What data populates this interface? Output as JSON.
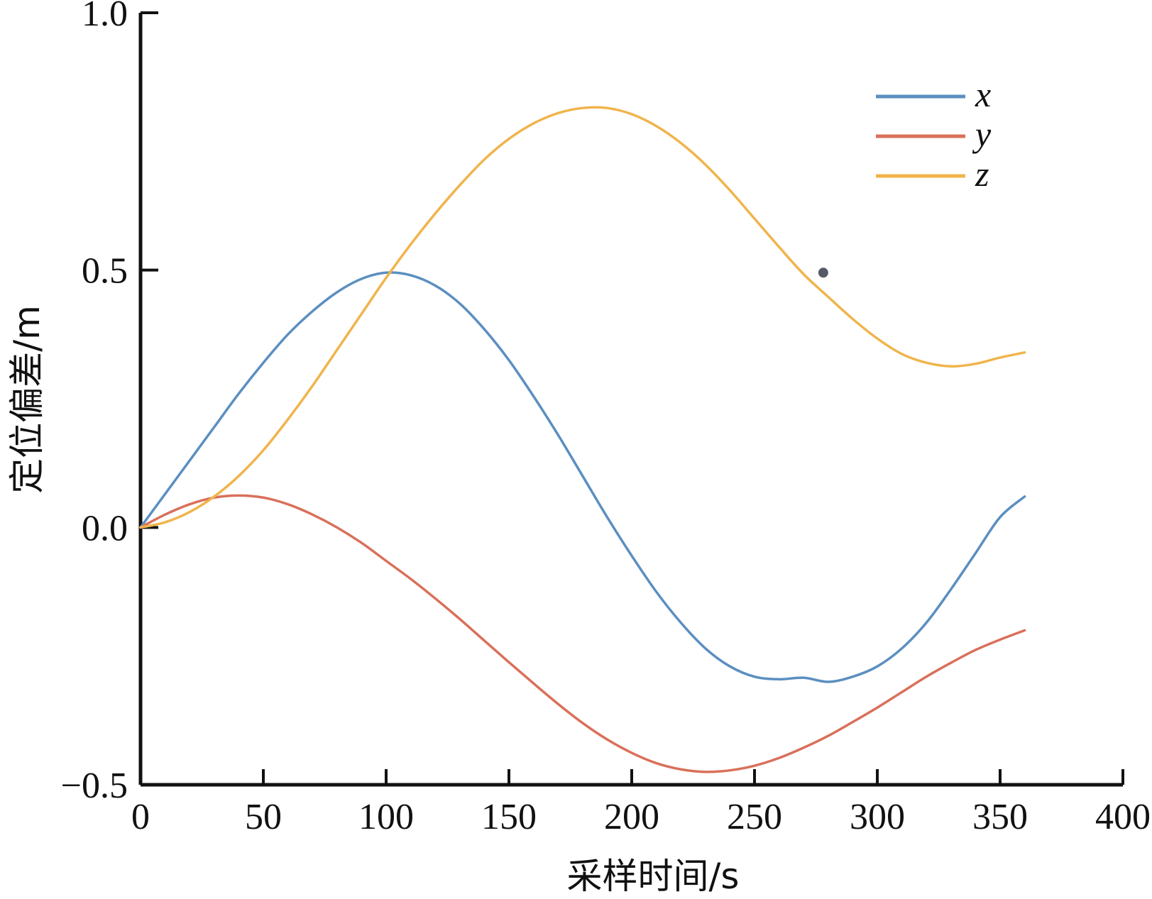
{
  "chart_data": {
    "type": "line",
    "title": "",
    "xlabel": "采样时间/s",
    "ylabel": "定位偏差/m",
    "xlim": [
      0,
      400
    ],
    "ylim": [
      -0.5,
      1.0
    ],
    "xticks": [
      0,
      50,
      100,
      150,
      200,
      250,
      300,
      350,
      400
    ],
    "yticks": [
      -0.5,
      0.0,
      0.5,
      1.0
    ],
    "xtick_labels": [
      "0",
      "50",
      "100",
      "150",
      "200",
      "250",
      "300",
      "350",
      "400"
    ],
    "ytick_labels": [
      "−0.5",
      "0.0",
      "0.5",
      "1.0"
    ],
    "grid": false,
    "legend_position": "top-right",
    "series": [
      {
        "name": "x",
        "color": "#5b8fc0",
        "x": [
          0,
          10,
          20,
          30,
          40,
          50,
          60,
          70,
          80,
          90,
          100,
          110,
          120,
          130,
          140,
          150,
          160,
          170,
          180,
          190,
          200,
          210,
          220,
          230,
          240,
          250,
          260,
          270,
          280,
          290,
          300,
          310,
          320,
          330,
          340,
          350,
          360
        ],
        "y": [
          0.0,
          0.065,
          0.13,
          0.195,
          0.26,
          0.32,
          0.375,
          0.42,
          0.457,
          0.483,
          0.495,
          0.49,
          0.47,
          0.435,
          0.385,
          0.325,
          0.255,
          0.18,
          0.1,
          0.02,
          -0.055,
          -0.125,
          -0.185,
          -0.235,
          -0.27,
          -0.29,
          -0.295,
          -0.292,
          -0.3,
          -0.29,
          -0.27,
          -0.235,
          -0.185,
          -0.12,
          -0.05,
          0.02,
          0.06
        ]
      },
      {
        "name": "y",
        "color": "#d9705a",
        "x": [
          0,
          10,
          20,
          30,
          40,
          50,
          60,
          70,
          80,
          90,
          100,
          110,
          120,
          130,
          140,
          150,
          160,
          170,
          180,
          190,
          200,
          210,
          220,
          230,
          240,
          250,
          260,
          270,
          280,
          290,
          300,
          310,
          320,
          330,
          340,
          350,
          360
        ],
        "y": [
          0.0,
          0.025,
          0.045,
          0.058,
          0.062,
          0.058,
          0.045,
          0.025,
          0.0,
          -0.03,
          -0.065,
          -0.1,
          -0.138,
          -0.178,
          -0.22,
          -0.262,
          -0.303,
          -0.343,
          -0.38,
          -0.412,
          -0.438,
          -0.458,
          -0.47,
          -0.475,
          -0.472,
          -0.463,
          -0.448,
          -0.428,
          -0.405,
          -0.378,
          -0.35,
          -0.32,
          -0.29,
          -0.263,
          -0.238,
          -0.218,
          -0.2
        ]
      },
      {
        "name": "z",
        "color": "#f0b44c",
        "x": [
          0,
          10,
          20,
          30,
          40,
          50,
          60,
          70,
          80,
          90,
          100,
          110,
          120,
          130,
          140,
          150,
          160,
          170,
          180,
          190,
          200,
          210,
          220,
          230,
          240,
          250,
          260,
          270,
          280,
          290,
          300,
          310,
          320,
          330,
          340,
          350,
          360
        ],
        "y": [
          0.0,
          0.01,
          0.03,
          0.06,
          0.1,
          0.15,
          0.21,
          0.275,
          0.345,
          0.415,
          0.485,
          0.55,
          0.61,
          0.665,
          0.715,
          0.755,
          0.785,
          0.805,
          0.815,
          0.815,
          0.803,
          0.78,
          0.747,
          0.705,
          0.655,
          0.6,
          0.545,
          0.492,
          0.448,
          0.405,
          0.367,
          0.337,
          0.32,
          0.313,
          0.318,
          0.33,
          0.34
        ]
      }
    ],
    "marker": {
      "x": 278,
      "y": 0.495,
      "color": "#555a66"
    }
  }
}
